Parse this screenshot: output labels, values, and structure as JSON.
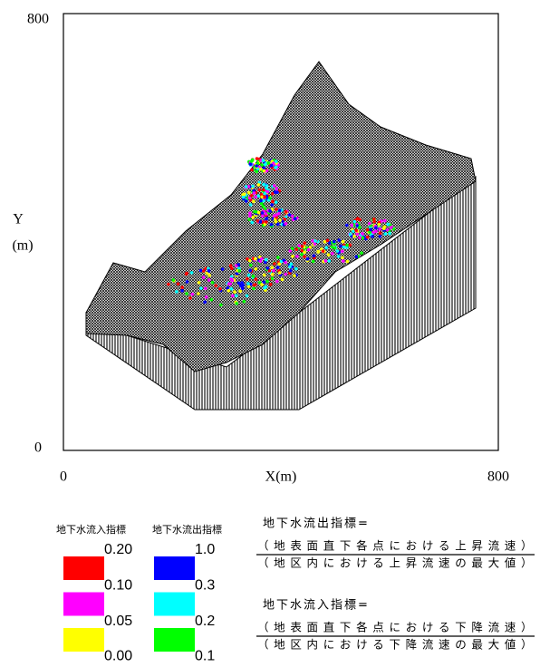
{
  "chart_data": {
    "type": "surface3d",
    "xlabel": "X(m)",
    "ylabel_lines": [
      "Y",
      "(m)"
    ],
    "xlim": [
      0,
      800
    ],
    "ylim": [
      0,
      800
    ],
    "xticks": [
      0,
      800
    ],
    "yticks": [
      0,
      800
    ],
    "legends": [
      {
        "title": "地下水流入指標",
        "colors": [
          "#ff0000",
          "#ff00ff",
          "#ffff00"
        ],
        "labels": [
          "0.20",
          "0.10",
          "0.05",
          "0.00"
        ]
      },
      {
        "title": "地下水流出指標",
        "colors": [
          "#0000ff",
          "#00ffff",
          "#00ff00"
        ],
        "labels": [
          "1.0",
          "0.3",
          "0.2",
          "0.1"
        ]
      }
    ],
    "formulas": [
      {
        "lhs": "地下水流出指標=",
        "numerator": "（地表面直下各点における上昇流速）",
        "denominator": "（地区内における上昇流速の最大値）"
      },
      {
        "lhs": "地下水流入指標=",
        "numerator": "（地表面直下各点における下降流速）",
        "denominator": "（地区内における下降流速の最大値）"
      }
    ]
  }
}
